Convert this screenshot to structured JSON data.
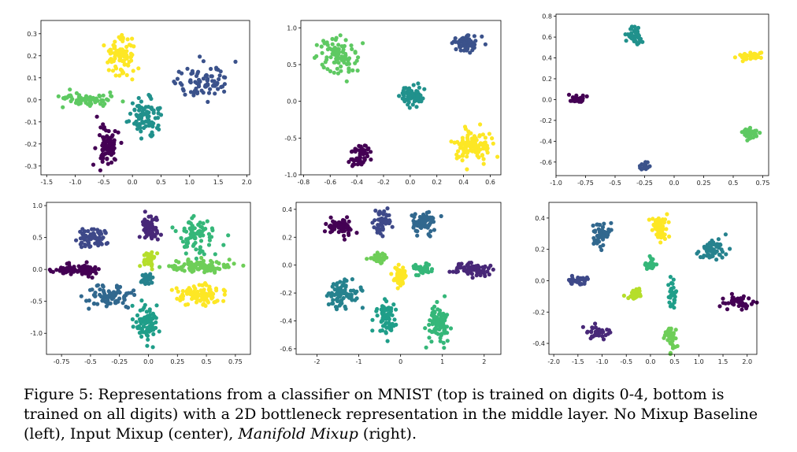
{
  "palette5": [
    "#440154",
    "#3b528b",
    "#21918c",
    "#5ec962",
    "#fde725"
  ],
  "palette10": [
    "#440154",
    "#482878",
    "#3e4989",
    "#31688e",
    "#26828e",
    "#1f9e89",
    "#35b779",
    "#6ece58",
    "#b5de2b",
    "#fde725"
  ],
  "caption": {
    "lead": "Figure 5: Representations from a classifier on MNIST (top is trained on digits 0-4, bottom is trained on all digits) with a 2D bottleneck representation in the middle layer. No Mixup Baseline (left), Input Mixup (center), ",
    "emph": "Manifold Mixup",
    "tail": " (right)."
  },
  "chart_data": [
    {
      "type": "scatter",
      "xlim": [
        -1.6,
        2.05
      ],
      "ylim": [
        -0.34,
        0.36
      ],
      "xticks": [
        -1.5,
        -1.0,
        -0.5,
        0.0,
        0.5,
        1.0,
        1.5,
        2.0
      ],
      "yticks": [
        -0.3,
        -0.2,
        -0.1,
        0.0,
        0.1,
        0.2,
        0.3
      ],
      "series": [
        {
          "class": 4,
          "cx": -0.2,
          "cy": 0.2,
          "sx": 0.13,
          "sy": 0.045,
          "n": 90
        },
        {
          "class": 1,
          "cx": 1.25,
          "cy": 0.08,
          "sx": 0.25,
          "sy": 0.035,
          "n": 80
        },
        {
          "class": 3,
          "cx": -0.8,
          "cy": 0.0,
          "sx": 0.25,
          "sy": 0.02,
          "n": 70
        },
        {
          "class": 2,
          "cx": 0.25,
          "cy": -0.08,
          "sx": 0.12,
          "sy": 0.04,
          "n": 90
        },
        {
          "class": 0,
          "cx": -0.45,
          "cy": -0.2,
          "sx": 0.1,
          "sy": 0.045,
          "n": 80
        }
      ]
    },
    {
      "type": "scatter",
      "xlim": [
        -0.82,
        0.68
      ],
      "ylim": [
        -1.0,
        1.1
      ],
      "xticks": [
        -0.8,
        -0.6,
        -0.4,
        -0.2,
        0.0,
        0.2,
        0.4,
        0.6
      ],
      "yticks": [
        -1.0,
        -0.5,
        0.0,
        0.5,
        1.0
      ],
      "series": [
        {
          "class": 3,
          "cx": -0.55,
          "cy": 0.62,
          "sx": 0.08,
          "sy": 0.12,
          "n": 90
        },
        {
          "class": 1,
          "cx": 0.42,
          "cy": 0.78,
          "sx": 0.05,
          "sy": 0.05,
          "n": 70
        },
        {
          "class": 2,
          "cx": 0.0,
          "cy": 0.08,
          "sx": 0.05,
          "sy": 0.06,
          "n": 70
        },
        {
          "class": 0,
          "cx": -0.38,
          "cy": -0.75,
          "sx": 0.04,
          "sy": 0.08,
          "n": 60
        },
        {
          "class": 4,
          "cx": 0.48,
          "cy": -0.6,
          "sx": 0.07,
          "sy": 0.1,
          "n": 110
        }
      ]
    },
    {
      "type": "scatter",
      "xlim": [
        -1.0,
        0.8
      ],
      "ylim": [
        -0.73,
        0.82
      ],
      "xticks": [
        -1.0,
        -0.75,
        -0.5,
        -0.25,
        0.0,
        0.25,
        0.5,
        0.75
      ],
      "yticks": [
        -0.6,
        -0.4,
        -0.2,
        0.0,
        0.2,
        0.4,
        0.6,
        0.8
      ],
      "series": [
        {
          "class": 2,
          "cx": -0.34,
          "cy": 0.62,
          "sx": 0.03,
          "sy": 0.05,
          "n": 40
        },
        {
          "class": 4,
          "cx": 0.64,
          "cy": 0.42,
          "sx": 0.04,
          "sy": 0.02,
          "n": 40
        },
        {
          "class": 0,
          "cx": -0.81,
          "cy": 0.0,
          "sx": 0.03,
          "sy": 0.02,
          "n": 35
        },
        {
          "class": 3,
          "cx": 0.63,
          "cy": -0.33,
          "sx": 0.04,
          "sy": 0.03,
          "n": 40
        },
        {
          "class": 1,
          "cx": -0.25,
          "cy": -0.65,
          "sx": 0.02,
          "sy": 0.03,
          "n": 20
        }
      ]
    },
    {
      "type": "scatter",
      "xlim": [
        -0.88,
        0.88
      ],
      "ylim": [
        -1.33,
        1.05
      ],
      "xticks": [
        -0.75,
        -0.5,
        -0.25,
        0.0,
        0.25,
        0.5,
        0.75
      ],
      "yticks": [
        -1.0,
        -0.5,
        0.0,
        0.5,
        1.0
      ],
      "series": [
        {
          "class": 0,
          "cx": -0.62,
          "cy": 0.0,
          "sx": 0.1,
          "sy": 0.04,
          "n": 90
        },
        {
          "class": 1,
          "cx": 0.02,
          "cy": 0.65,
          "sx": 0.04,
          "sy": 0.1,
          "n": 60
        },
        {
          "class": 2,
          "cx": -0.48,
          "cy": 0.5,
          "sx": 0.07,
          "sy": 0.08,
          "n": 80
        },
        {
          "class": 3,
          "cx": -0.33,
          "cy": -0.4,
          "sx": 0.1,
          "sy": 0.09,
          "n": 80
        },
        {
          "class": 4,
          "cx": -0.01,
          "cy": -0.15,
          "sx": 0.03,
          "sy": 0.04,
          "n": 40
        },
        {
          "class": 5,
          "cx": -0.02,
          "cy": -0.82,
          "sx": 0.05,
          "sy": 0.15,
          "n": 90
        },
        {
          "class": 6,
          "cx": 0.4,
          "cy": 0.5,
          "sx": 0.09,
          "sy": 0.13,
          "n": 80
        },
        {
          "class": 7,
          "cx": 0.45,
          "cy": 0.05,
          "sx": 0.13,
          "sy": 0.05,
          "n": 100
        },
        {
          "class": 8,
          "cx": 0.0,
          "cy": 0.15,
          "sx": 0.03,
          "sy": 0.06,
          "n": 40
        },
        {
          "class": 9,
          "cx": 0.45,
          "cy": -0.4,
          "sx": 0.12,
          "sy": 0.08,
          "n": 100
        }
      ]
    },
    {
      "type": "scatter",
      "xlim": [
        -2.5,
        2.4
      ],
      "ylim": [
        -0.64,
        0.45
      ],
      "xticks": [
        -2,
        -1,
        0,
        1,
        2
      ],
      "yticks": [
        -0.6,
        -0.4,
        -0.2,
        0.0,
        0.2,
        0.4
      ],
      "series": [
        {
          "class": 0,
          "cx": -1.45,
          "cy": 0.28,
          "sx": 0.15,
          "sy": 0.03,
          "n": 70
        },
        {
          "class": 2,
          "cx": -0.45,
          "cy": 0.3,
          "sx": 0.1,
          "sy": 0.04,
          "n": 50
        },
        {
          "class": 3,
          "cx": 0.55,
          "cy": 0.3,
          "sx": 0.15,
          "sy": 0.04,
          "n": 70
        },
        {
          "class": 1,
          "cx": 1.75,
          "cy": -0.03,
          "sx": 0.22,
          "sy": 0.025,
          "n": 80
        },
        {
          "class": 7,
          "cx": -0.5,
          "cy": 0.05,
          "sx": 0.1,
          "sy": 0.02,
          "n": 40
        },
        {
          "class": 9,
          "cx": 0.0,
          "cy": -0.08,
          "sx": 0.08,
          "sy": 0.04,
          "n": 50
        },
        {
          "class": 6,
          "cx": 0.55,
          "cy": -0.03,
          "sx": 0.1,
          "sy": 0.02,
          "n": 40
        },
        {
          "class": 4,
          "cx": -1.4,
          "cy": -0.2,
          "sx": 0.2,
          "sy": 0.06,
          "n": 80
        },
        {
          "class": 5,
          "cx": -0.35,
          "cy": -0.38,
          "sx": 0.12,
          "sy": 0.06,
          "n": 80
        },
        {
          "class": 6,
          "cx": 0.9,
          "cy": -0.43,
          "sx": 0.12,
          "sy": 0.08,
          "n": 90
        }
      ]
    },
    {
      "type": "scatter",
      "xlim": [
        -2.1,
        2.2
      ],
      "ylim": [
        -0.47,
        0.5
      ],
      "xticks": [
        -2.0,
        -1.5,
        -1.0,
        -0.5,
        0.0,
        0.5,
        1.0,
        1.5,
        2.0
      ],
      "yticks": [
        -0.4,
        -0.2,
        0.0,
        0.2,
        0.4
      ],
      "series": [
        {
          "class": 9,
          "cx": 0.2,
          "cy": 0.35,
          "sx": 0.08,
          "sy": 0.04,
          "n": 60
        },
        {
          "class": 3,
          "cx": -1.0,
          "cy": 0.3,
          "sx": 0.1,
          "sy": 0.04,
          "n": 50
        },
        {
          "class": 4,
          "cx": 1.3,
          "cy": 0.2,
          "sx": 0.15,
          "sy": 0.03,
          "n": 60
        },
        {
          "class": 2,
          "cx": -1.5,
          "cy": 0.0,
          "sx": 0.1,
          "sy": 0.015,
          "n": 40
        },
        {
          "class": 6,
          "cx": 0.0,
          "cy": 0.1,
          "sx": 0.05,
          "sy": 0.02,
          "n": 30
        },
        {
          "class": 8,
          "cx": -0.35,
          "cy": -0.09,
          "sx": 0.08,
          "sy": 0.02,
          "n": 30
        },
        {
          "class": 5,
          "cx": 0.45,
          "cy": -0.08,
          "sx": 0.06,
          "sy": 0.04,
          "n": 30
        },
        {
          "class": 0,
          "cx": 1.8,
          "cy": -0.14,
          "sx": 0.15,
          "sy": 0.02,
          "n": 50
        },
        {
          "class": 1,
          "cx": -1.1,
          "cy": -0.33,
          "sx": 0.12,
          "sy": 0.025,
          "n": 40
        },
        {
          "class": 7,
          "cx": 0.4,
          "cy": -0.36,
          "sx": 0.06,
          "sy": 0.04,
          "n": 50
        }
      ]
    }
  ]
}
